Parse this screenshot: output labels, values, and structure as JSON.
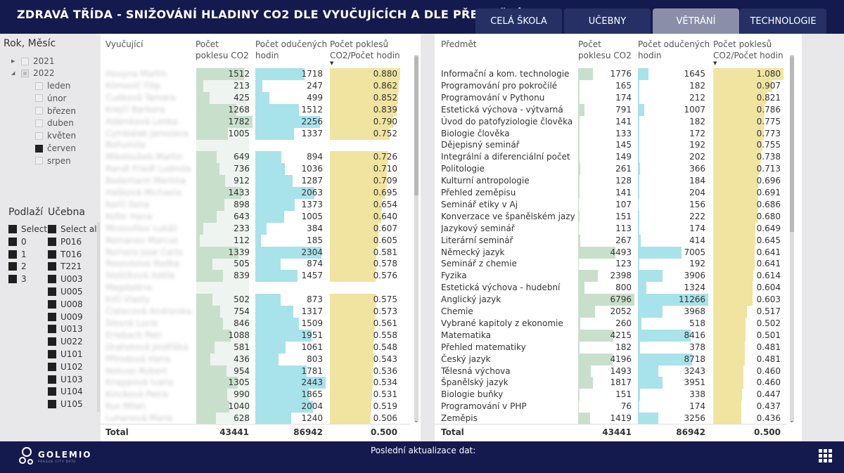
{
  "header": {
    "title": "ZDRAVÁ TŘÍDA - SNIŽOVÁNÍ HLADINY CO2 DLE VYUČUJÍCÍCH A DLE PŘEDMĚTŮ",
    "tabs": [
      "CELÁ ŠKOLA",
      "UČEBNY",
      "VĚTRÁNÍ",
      "TECHNOLOGIE"
    ]
  },
  "slicer_date": {
    "title": "Rok, Měsíc",
    "years": [
      "2021",
      "2022"
    ],
    "months": [
      "leden",
      "únor",
      "březen",
      "duben",
      "květen",
      "červen",
      "srpen"
    ],
    "selected_month": "červen"
  },
  "slicer_floor": {
    "title": "Podlaží",
    "items": [
      "Select",
      "0",
      "1",
      "2",
      "3"
    ]
  },
  "slicer_room": {
    "title": "Učebna",
    "items": [
      "Select all",
      "P016",
      "T016",
      "T221",
      "U003",
      "U005",
      "U008",
      "U009",
      "U013",
      "U022",
      "U101",
      "U102",
      "U103",
      "U104",
      "U105"
    ]
  },
  "colors": {
    "header": "#141a4e",
    "tab": "#263064",
    "tab_active": "#8a8ea8",
    "bar_green": "#c8dfcc",
    "bar_cyan": "#a8e2ea",
    "bar_yellow": "#f0e4a0"
  },
  "teachers_table": {
    "headers": [
      "Vyučující",
      "Počet poklesu CO2",
      "Počet odučených hodin",
      "Počet poklesů CO2/Počet hodin"
    ],
    "rows": [
      {
        "name": "Hovyna Martin",
        "drops": "1512",
        "hours": "1718",
        "ratio": "0.880"
      },
      {
        "name": "Klimovič Filip",
        "drops": "213",
        "hours": "247",
        "ratio": "0.862"
      },
      {
        "name": "Čudková Tamara",
        "drops": "425",
        "hours": "499",
        "ratio": "0.852"
      },
      {
        "name": "Krejčí Barbora",
        "drops": "1268",
        "hours": "1512",
        "ratio": "0.839"
      },
      {
        "name": "Adámková Lenka",
        "drops": "1782",
        "hours": "2256",
        "ratio": "0.790"
      },
      {
        "name": "Cymbalak Jaroslava",
        "drops": "1005",
        "hours": "1337",
        "ratio": "0.752"
      },
      {
        "name": "Bohumila",
        "drops": "",
        "hours": "",
        "ratio": ""
      },
      {
        "name": "Mikoloubek Martin",
        "drops": "649",
        "hours": "894",
        "ratio": "0.726"
      },
      {
        "name": "Randl Friedl Ludmila",
        "drops": "736",
        "hours": "1036",
        "ratio": "0.710"
      },
      {
        "name": "Bodemann Martina",
        "drops": "912",
        "hours": "1287",
        "ratio": "0.709"
      },
      {
        "name": "Hašková Michaela",
        "drops": "1433",
        "hours": "2063",
        "ratio": "0.695"
      },
      {
        "name": "Korčí Ilona",
        "drops": "898",
        "hours": "1373",
        "ratio": "0.654"
      },
      {
        "name": "Kofer Hana",
        "drops": "643",
        "hours": "1005",
        "ratio": "0.640"
      },
      {
        "name": "Mirosvillov Lukáš",
        "drops": "233",
        "hours": "384",
        "ratio": "0.607"
      },
      {
        "name": "Romanov Marcus",
        "drops": "112",
        "hours": "185",
        "ratio": "0.605"
      },
      {
        "name": "Romero Jose Carlo",
        "drops": "1339",
        "hours": "2304",
        "ratio": "0.581"
      },
      {
        "name": "Rosovková Radka",
        "drops": "505",
        "hours": "874",
        "ratio": "0.578"
      },
      {
        "name": "Sloštíková Adéla",
        "drops": "839",
        "hours": "1457",
        "ratio": "0.576"
      },
      {
        "name": "Magdaléna",
        "drops": "",
        "hours": "",
        "ratio": ""
      },
      {
        "name": "Krčí Vlasty",
        "drops": "502",
        "hours": "873",
        "ratio": "0.575"
      },
      {
        "name": "Čistecová Andronika",
        "drops": "754",
        "hours": "1317",
        "ratio": "0.573"
      },
      {
        "name": "Šlesná Lucie",
        "drops": "846",
        "hours": "1509",
        "ratio": "0.561"
      },
      {
        "name": "Erlebach Petr",
        "drops": "1088",
        "hours": "1951",
        "ratio": "0.558"
      },
      {
        "name": "Drahotová Jindřiška",
        "drops": "581",
        "hours": "1061",
        "ratio": "0.548"
      },
      {
        "name": "Přírodová Hana",
        "drops": "436",
        "hours": "803",
        "ratio": "0.543"
      },
      {
        "name": "Nekvas Robert",
        "drops": "954",
        "hours": "1781",
        "ratio": "0.536"
      },
      {
        "name": "Knappová Ivana",
        "drops": "1305",
        "hours": "2443",
        "ratio": "0.534"
      },
      {
        "name": "Kincková Petra",
        "drops": "990",
        "hours": "1865",
        "ratio": "0.531"
      },
      {
        "name": "Kus Milan",
        "drops": "1040",
        "hours": "2004",
        "ratio": "0.519"
      },
      {
        "name": "Luhanová Marie",
        "drops": "628",
        "hours": "1240",
        "ratio": "0.506"
      }
    ],
    "total": {
      "label": "Total",
      "drops": "43441",
      "hours": "86942",
      "ratio": "0.500"
    }
  },
  "subjects_table": {
    "headers": [
      "Předmět",
      "Počet poklesu CO2",
      "Počet odučených hodin",
      "Počet poklesů CO2/Počet hodin"
    ],
    "rows": [
      {
        "name": "Informační a kom. technologie",
        "drops": "1776",
        "hours": "1645",
        "ratio": "1.080"
      },
      {
        "name": "Programování pro pokročilé",
        "drops": "165",
        "hours": "182",
        "ratio": "0.907"
      },
      {
        "name": "Programování v Pythonu",
        "drops": "174",
        "hours": "212",
        "ratio": "0.821"
      },
      {
        "name": "Estetická výchova - výtvarná",
        "drops": "791",
        "hours": "1007",
        "ratio": "0.786"
      },
      {
        "name": "Úvod do patofyziologie člověka",
        "drops": "141",
        "hours": "182",
        "ratio": "0.775"
      },
      {
        "name": "Biologie člověka",
        "drops": "133",
        "hours": "172",
        "ratio": "0.773"
      },
      {
        "name": "Dějepisný seminář",
        "drops": "145",
        "hours": "192",
        "ratio": "0.755"
      },
      {
        "name": "Integrální a diferenciální počet",
        "drops": "149",
        "hours": "202",
        "ratio": "0.738"
      },
      {
        "name": "Politologie",
        "drops": "261",
        "hours": "366",
        "ratio": "0.713"
      },
      {
        "name": "Kulturní antropologie",
        "drops": "128",
        "hours": "184",
        "ratio": "0.696"
      },
      {
        "name": "Přehled zeměpisu",
        "drops": "141",
        "hours": "204",
        "ratio": "0.691"
      },
      {
        "name": "Seminář etiky v Aj",
        "drops": "107",
        "hours": "156",
        "ratio": "0.686"
      },
      {
        "name": "Konverzace ve španělském jazyce",
        "drops": "151",
        "hours": "222",
        "ratio": "0.680"
      },
      {
        "name": "Jazykový seminář",
        "drops": "113",
        "hours": "174",
        "ratio": "0.649"
      },
      {
        "name": "Literární seminář",
        "drops": "267",
        "hours": "414",
        "ratio": "0.645"
      },
      {
        "name": "Německý jazyk",
        "drops": "4493",
        "hours": "7005",
        "ratio": "0.641"
      },
      {
        "name": "Seminář z chemie",
        "drops": "123",
        "hours": "192",
        "ratio": "0.641"
      },
      {
        "name": "Fyzika",
        "drops": "2398",
        "hours": "3906",
        "ratio": "0.614"
      },
      {
        "name": "Estetická výchova - hudební",
        "drops": "800",
        "hours": "1324",
        "ratio": "0.604"
      },
      {
        "name": "Anglický jazyk",
        "drops": "6796",
        "hours": "11266",
        "ratio": "0.603"
      },
      {
        "name": "Chemie",
        "drops": "2052",
        "hours": "3968",
        "ratio": "0.517"
      },
      {
        "name": "Vybrané kapitoly z ekonomie",
        "drops": "260",
        "hours": "518",
        "ratio": "0.502"
      },
      {
        "name": "Matematika",
        "drops": "4215",
        "hours": "8416",
        "ratio": "0.501"
      },
      {
        "name": "Přehled matematiky",
        "drops": "182",
        "hours": "378",
        "ratio": "0.481"
      },
      {
        "name": "Český jazyk",
        "drops": "4196",
        "hours": "8718",
        "ratio": "0.481"
      },
      {
        "name": "Tělesná výchova",
        "drops": "1493",
        "hours": "3243",
        "ratio": "0.460"
      },
      {
        "name": "Španělský jazyk",
        "drops": "1817",
        "hours": "3951",
        "ratio": "0.460"
      },
      {
        "name": "Biologie buňky",
        "drops": "151",
        "hours": "338",
        "ratio": "0.447"
      },
      {
        "name": "Programování v PHP",
        "drops": "76",
        "hours": "174",
        "ratio": "0.437"
      },
      {
        "name": "Zeměpis",
        "drops": "1419",
        "hours": "3256",
        "ratio": "0.436"
      }
    ],
    "total": {
      "label": "Total",
      "drops": "43441",
      "hours": "86942",
      "ratio": "0.500"
    }
  },
  "footer": {
    "logo_text": "GOLEMIO",
    "logo_sub": "PRAGUE CITY DATA",
    "last_update_label": "Poslední aktualizace dat:"
  }
}
